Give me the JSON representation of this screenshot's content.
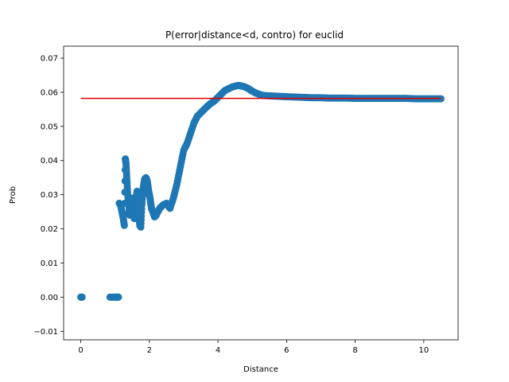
{
  "chart_data": {
    "type": "scatter",
    "title": "P(error|distance<d, contro) for euclid",
    "xlabel": "Distance",
    "ylabel": "Prob",
    "xlim": [
      -0.5,
      11.0
    ],
    "ylim": [
      -0.0125,
      0.0735
    ],
    "xticks": [
      0,
      2,
      4,
      6,
      8,
      10
    ],
    "xtick_labels": [
      "0",
      "2",
      "4",
      "6",
      "8",
      "10"
    ],
    "yticks": [
      -0.01,
      0.0,
      0.01,
      0.02,
      0.03,
      0.04,
      0.05,
      0.06,
      0.07
    ],
    "ytick_labels": [
      "−0.01",
      "0.00",
      "0.01",
      "0.02",
      "0.03",
      "0.04",
      "0.05",
      "0.06",
      "0.07"
    ],
    "grid": false,
    "series": [
      {
        "kind": "scatter",
        "color": "#1f77b4",
        "points": [
          [
            0.0,
            0.0
          ],
          [
            0.02,
            0.0
          ],
          [
            0.04,
            0.0
          ],
          [
            0.85,
            0.0
          ],
          [
            1.0,
            0.0
          ],
          [
            1.05,
            0.0
          ],
          [
            1.1,
            0.0
          ],
          [
            1.12,
            0.0275
          ],
          [
            1.16,
            0.027
          ],
          [
            1.2,
            0.025
          ],
          [
            1.24,
            0.023
          ],
          [
            1.27,
            0.021
          ],
          [
            1.3,
            0.0405
          ],
          [
            1.32,
            0.039
          ],
          [
            1.34,
            0.035
          ],
          [
            1.37,
            0.03
          ],
          [
            1.4,
            0.027
          ],
          [
            1.43,
            0.024
          ],
          [
            1.46,
            0.026
          ],
          [
            1.5,
            0.029
          ],
          [
            1.53,
            0.025
          ],
          [
            1.56,
            0.023
          ],
          [
            1.6,
            0.028
          ],
          [
            1.64,
            0.031
          ],
          [
            1.68,
            0.025
          ],
          [
            1.72,
            0.021
          ],
          [
            1.75,
            0.0205
          ],
          [
            1.78,
            0.027
          ],
          [
            1.82,
            0.032
          ],
          [
            1.86,
            0.0345
          ],
          [
            1.9,
            0.035
          ],
          [
            1.94,
            0.034
          ],
          [
            1.98,
            0.031
          ],
          [
            2.02,
            0.029
          ],
          [
            2.06,
            0.026
          ],
          [
            2.1,
            0.025
          ],
          [
            2.15,
            0.0235
          ],
          [
            2.2,
            0.024
          ],
          [
            2.3,
            0.026
          ],
          [
            2.4,
            0.027
          ],
          [
            2.5,
            0.0275
          ],
          [
            2.6,
            0.026
          ],
          [
            2.7,
            0.029
          ],
          [
            2.8,
            0.033
          ],
          [
            2.9,
            0.038
          ],
          [
            3.0,
            0.043
          ],
          [
            3.1,
            0.045
          ],
          [
            3.2,
            0.048
          ],
          [
            3.3,
            0.051
          ],
          [
            3.4,
            0.053
          ],
          [
            3.5,
            0.054
          ],
          [
            3.6,
            0.055
          ],
          [
            3.7,
            0.056
          ],
          [
            3.8,
            0.0568
          ],
          [
            3.9,
            0.0575
          ],
          [
            4.0,
            0.0585
          ],
          [
            4.1,
            0.0595
          ],
          [
            4.2,
            0.0605
          ],
          [
            4.3,
            0.061
          ],
          [
            4.4,
            0.0615
          ],
          [
            4.5,
            0.0618
          ],
          [
            4.6,
            0.062
          ],
          [
            4.7,
            0.0618
          ],
          [
            4.8,
            0.0615
          ],
          [
            4.9,
            0.061
          ],
          [
            5.0,
            0.0603
          ],
          [
            5.1,
            0.0598
          ],
          [
            5.2,
            0.0594
          ],
          [
            5.3,
            0.0591
          ],
          [
            5.4,
            0.059
          ],
          [
            5.6,
            0.0589
          ],
          [
            5.8,
            0.0588
          ],
          [
            6.0,
            0.0587
          ],
          [
            6.25,
            0.0586
          ],
          [
            6.5,
            0.0585
          ],
          [
            6.75,
            0.0584
          ],
          [
            7.0,
            0.0584
          ],
          [
            7.25,
            0.0583
          ],
          [
            7.5,
            0.0583
          ],
          [
            7.75,
            0.0583
          ],
          [
            8.0,
            0.0582
          ],
          [
            8.25,
            0.0582
          ],
          [
            8.5,
            0.0582
          ],
          [
            8.75,
            0.0582
          ],
          [
            9.0,
            0.0582
          ],
          [
            9.25,
            0.0582
          ],
          [
            9.5,
            0.0582
          ],
          [
            9.75,
            0.0581
          ],
          [
            10.0,
            0.0581
          ],
          [
            10.25,
            0.0581
          ],
          [
            10.5,
            0.0581
          ]
        ]
      },
      {
        "kind": "line",
        "color": "#e00000",
        "x": [
          0.0,
          10.5
        ],
        "y": [
          0.0582,
          0.0582
        ]
      }
    ]
  }
}
